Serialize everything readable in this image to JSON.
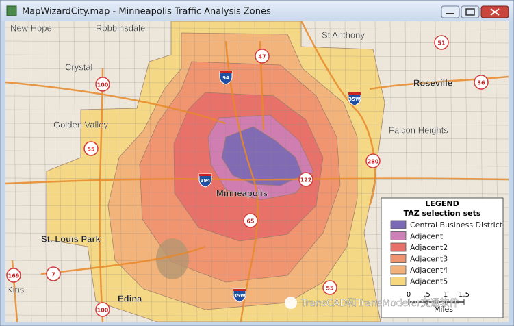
{
  "window": {
    "title": "MapWizardCity.map - Minneapolis Traffic Analysis Zones"
  },
  "map": {
    "places": [
      "New Hope",
      "Robbinsdale",
      "St Anthony",
      "Crystal",
      "Roseville",
      "Golden Valley",
      "Falcon Heights",
      "Minneapolis",
      "St. Louis Park",
      "Edina",
      "Kins"
    ],
    "state_routes": [
      "47",
      "51",
      "100",
      "36",
      "55",
      "280",
      "122",
      "65",
      "7",
      "169",
      "55",
      "100"
    ],
    "interstates": [
      "94",
      "35W",
      "394",
      "35W"
    ]
  },
  "legend": {
    "title": "LEGEND",
    "subtitle": "TAZ selection sets",
    "items": [
      {
        "label": "Central Business District",
        "color": "#7a6ab5"
      },
      {
        "label": "Adjacent",
        "color": "#cf7fb8"
      },
      {
        "label": "Adjacent2",
        "color": "#e8706a"
      },
      {
        "label": "Adjacent3",
        "color": "#f0936f"
      },
      {
        "label": "Adjacent4",
        "color": "#f3b27c"
      },
      {
        "label": "Adjacent5",
        "color": "#f6d77e"
      }
    ]
  },
  "scale": {
    "ticks": [
      "0",
      ".5",
      "1",
      "1.5"
    ],
    "unit": "Miles"
  },
  "watermark": "TransCAD和TransModeler交通软件"
}
